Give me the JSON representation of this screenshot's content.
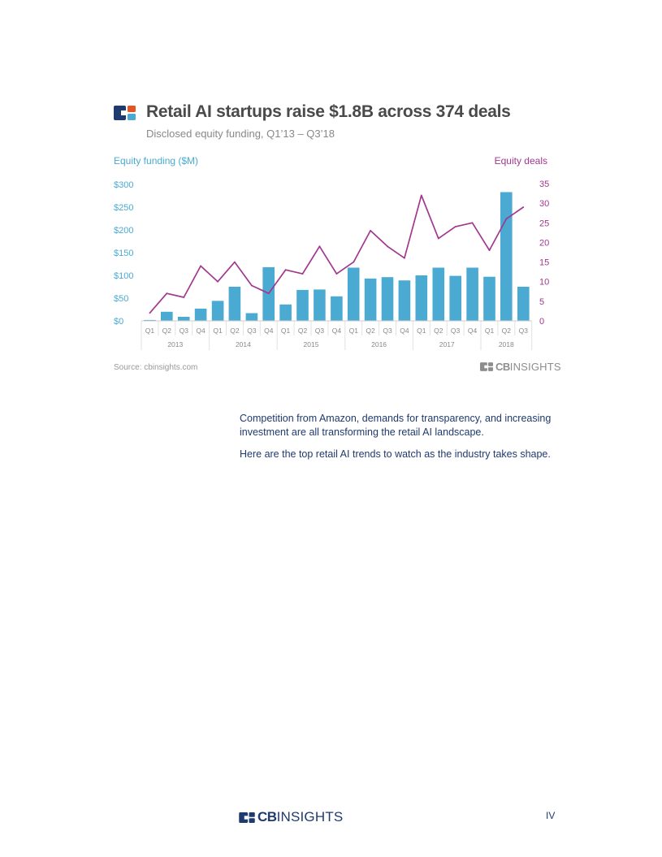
{
  "header": {
    "title": "Retail AI startups raise $1.8B across 374 deals",
    "subtitle": "Disclosed equity funding, Q1’13 – Q3’18"
  },
  "colors": {
    "funding": "#4aaad2",
    "deals": "#a2378f",
    "logo_navy": "#1f3a6e",
    "logo_orange": "#e55524",
    "logo_teal": "#4aaad2"
  },
  "chart_data": {
    "type": "bar",
    "title": "Retail AI startups raise $1.8B across 374 deals",
    "subtitle": "Disclosed equity funding, Q1’13 – Q3’18",
    "y_left_label": "Equity funding ($M)",
    "y_right_label": "Equity deals",
    "y_left_ticks": [
      "$0",
      "$50",
      "$100",
      "$150",
      "$200",
      "$250",
      "$300"
    ],
    "y_right_ticks": [
      "0",
      "5",
      "10",
      "15",
      "20",
      "25",
      "30",
      "35"
    ],
    "ylim_left": [
      0,
      300
    ],
    "ylim_right": [
      0,
      35
    ],
    "quarter_labels": [
      "Q1",
      "Q2",
      "Q3",
      "Q4",
      "Q1",
      "Q2",
      "Q3",
      "Q4",
      "Q1",
      "Q2",
      "Q3",
      "Q4",
      "Q1",
      "Q2",
      "Q3",
      "Q4",
      "Q1",
      "Q2",
      "Q3",
      "Q4",
      "Q1",
      "Q2",
      "Q3"
    ],
    "years": [
      "2013",
      "2014",
      "2015",
      "2016",
      "2017",
      "2018"
    ],
    "legend": "none",
    "grid": false,
    "series": [
      {
        "name": "Equity funding ($M)",
        "type": "bar",
        "axis": "left",
        "values": [
          2,
          20,
          9,
          27,
          44,
          75,
          17,
          118,
          36,
          68,
          69,
          54,
          117,
          93,
          96,
          89,
          100,
          117,
          99,
          117,
          97,
          283,
          75
        ]
      },
      {
        "name": "Equity deals",
        "type": "line",
        "axis": "right",
        "values": [
          2,
          7,
          6,
          14,
          10,
          15,
          9,
          7,
          13,
          12,
          19,
          12,
          15,
          23,
          19,
          16,
          32,
          21,
          24,
          25,
          18,
          26,
          29
        ]
      }
    ]
  },
  "footer_note": {
    "source": "Source: cbinsights.com"
  },
  "brand": {
    "bold": "CB",
    "light": "INSIGHTS"
  },
  "body": {
    "paragraph_1": "Competition from Amazon, demands for transparency, and increasing investment are all transforming the retail AI landscape.",
    "paragraph_2": "Here are the top retail AI trends to watch as the industry takes shape."
  },
  "page": {
    "number": "IV"
  }
}
